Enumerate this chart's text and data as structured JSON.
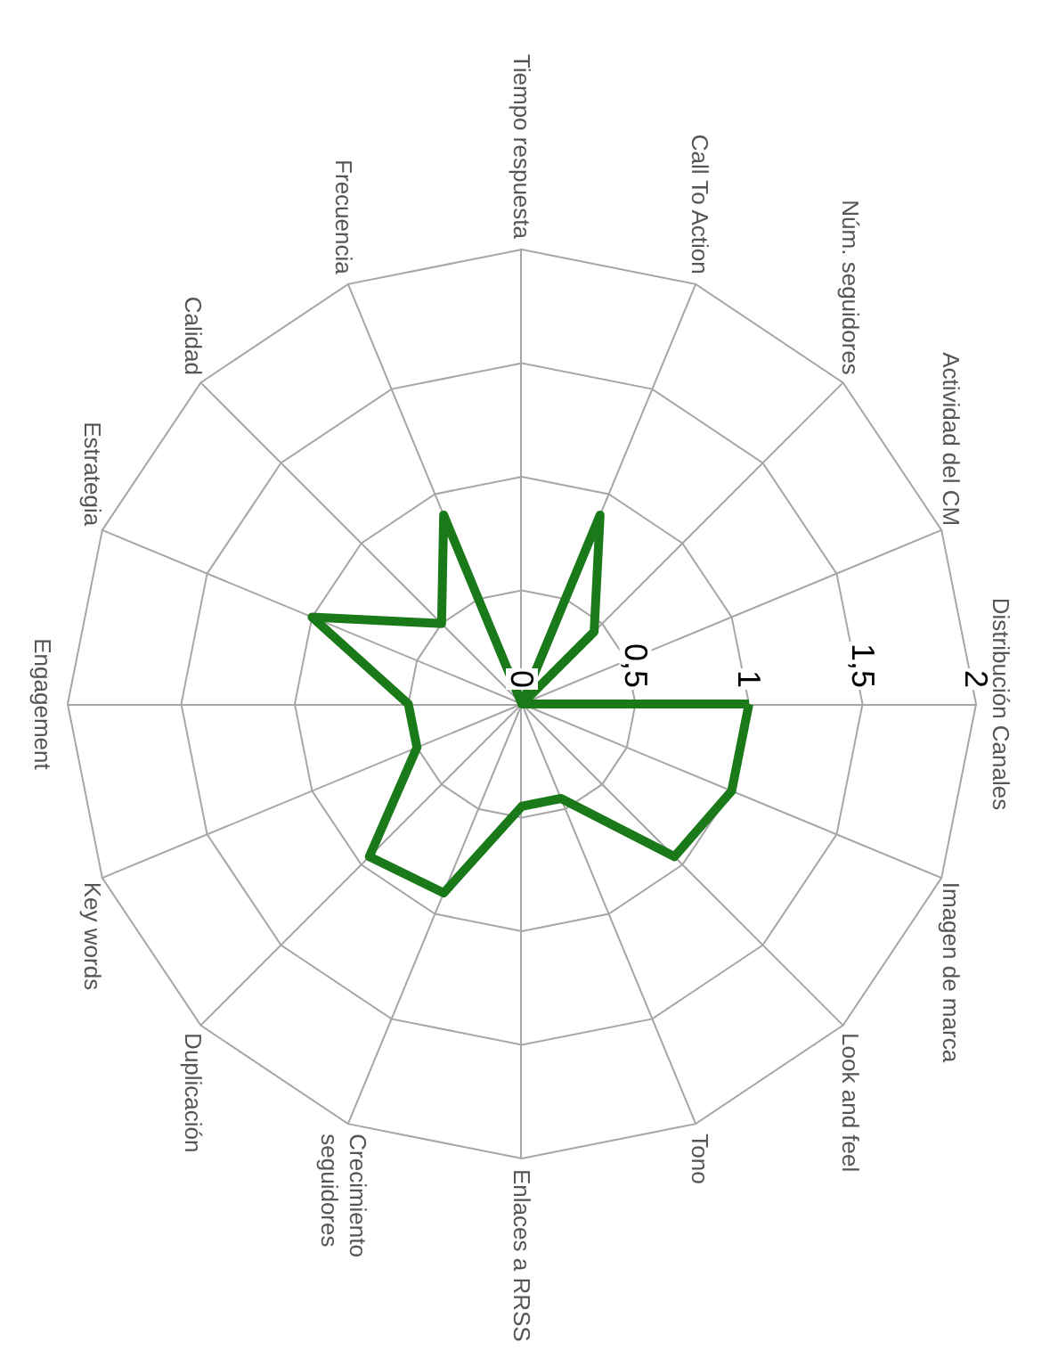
{
  "chart_data": {
    "type": "radar",
    "categories": [
      "Distribución Canales",
      "Imagen de marca",
      "Look and feel",
      "Tono",
      "Enlaces a RRSS",
      "Crecimiento seguidores",
      "Duplicación",
      "Key words",
      "Engagement",
      "Estrategia",
      "Calidad",
      "Frecuencia",
      "Tiempo respuesta",
      "Call To Action",
      "Núm. seguidores",
      "Actividad del CM"
    ],
    "series": [
      {
        "color": "#1a7a1a",
        "values": [
          1,
          1,
          0.95,
          0.45,
          0.45,
          0.9,
          0.95,
          0.5,
          0.5,
          1,
          0.5,
          0.9,
          0,
          0.9,
          0.45,
          0
        ]
      }
    ],
    "ylim": [
      0,
      2
    ],
    "yticks": [
      0,
      {
        "value": 0.5,
        "label": "0,5"
      },
      1,
      {
        "value": 1.5,
        "label": "1,5"
      },
      2
    ],
    "grid": true,
    "marker": "none",
    "line_style": "solid"
  }
}
